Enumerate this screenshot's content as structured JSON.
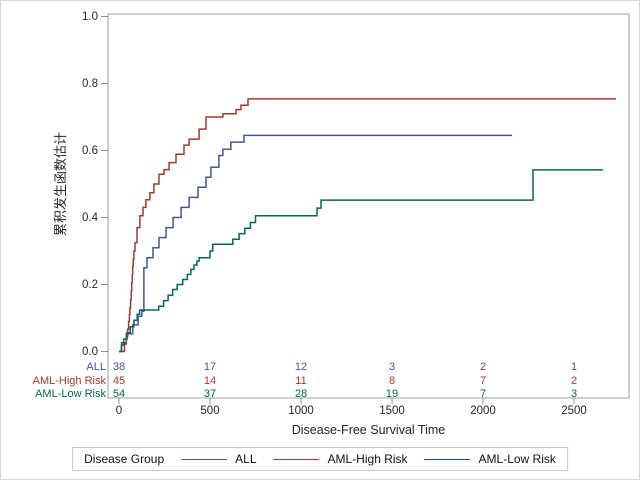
{
  "colors": {
    "all_group": "#445694",
    "aml_high_group": "#A23A2E",
    "aml_low_group": "#01665E",
    "frame": "#9ba0a3",
    "tick": "#8d9194",
    "text": "#262626",
    "legend_border": "#c9c9c9"
  },
  "legend": {
    "title": "Disease Group",
    "items": [
      {
        "label": "ALL",
        "color": "#445694"
      },
      {
        "label": "AML-High Risk",
        "color": "#A23A2E"
      },
      {
        "label": "AML-Low Risk",
        "color": "#01665E"
      }
    ]
  },
  "chart_data": {
    "type": "line",
    "subtype": "step-cumulative-incidence",
    "xlabel": "Disease-Free Survival Time",
    "ylabel": "累积发生函数估计",
    "xlim": [
      -60,
      2800
    ],
    "ylim": [
      0.0,
      1.0
    ],
    "x_ticks": [
      0,
      500,
      1000,
      1500,
      2000,
      2500
    ],
    "y_ticks": [
      0.0,
      0.2,
      0.4,
      0.6,
      0.8,
      1.0
    ],
    "grid": false,
    "legend_position": "bottom",
    "series": [
      {
        "name": "ALL",
        "color": "#445694",
        "steps": [
          [
            14,
            0.026
          ],
          [
            40,
            0.053
          ],
          [
            75,
            0.08
          ],
          [
            105,
            0.105
          ],
          [
            125,
            0.12
          ],
          [
            137,
            0.25
          ],
          [
            154,
            0.28
          ],
          [
            187,
            0.31
          ],
          [
            220,
            0.34
          ],
          [
            258,
            0.37
          ],
          [
            297,
            0.4
          ],
          [
            341,
            0.43
          ],
          [
            385,
            0.46
          ],
          [
            434,
            0.49
          ],
          [
            478,
            0.52
          ],
          [
            505,
            0.55
          ],
          [
            549,
            0.585
          ],
          [
            571,
            0.604
          ],
          [
            615,
            0.625
          ],
          [
            687,
            0.645
          ],
          [
            2160,
            0.645
          ]
        ]
      },
      {
        "name": "AML-High Risk",
        "color": "#A23A2E",
        "steps": [
          [
            30,
            0.022
          ],
          [
            40,
            0.045
          ],
          [
            48,
            0.067
          ],
          [
            53,
            0.09
          ],
          [
            57,
            0.11
          ],
          [
            60,
            0.13
          ],
          [
            64,
            0.155
          ],
          [
            67,
            0.18
          ],
          [
            70,
            0.205
          ],
          [
            73,
            0.23
          ],
          [
            75,
            0.255
          ],
          [
            78,
            0.275
          ],
          [
            82,
            0.3
          ],
          [
            88,
            0.325
          ],
          [
            99,
            0.37
          ],
          [
            115,
            0.405
          ],
          [
            132,
            0.43
          ],
          [
            148,
            0.453
          ],
          [
            170,
            0.474
          ],
          [
            192,
            0.5
          ],
          [
            220,
            0.529
          ],
          [
            247,
            0.543
          ],
          [
            275,
            0.564
          ],
          [
            313,
            0.589
          ],
          [
            357,
            0.616
          ],
          [
            385,
            0.634
          ],
          [
            440,
            0.664
          ],
          [
            478,
            0.7
          ],
          [
            571,
            0.71
          ],
          [
            643,
            0.722
          ],
          [
            670,
            0.735
          ],
          [
            709,
            0.754
          ],
          [
            2730,
            0.754
          ]
        ]
      },
      {
        "name": "AML-Low Risk",
        "color": "#01665E",
        "steps": [
          [
            14,
            0.019
          ],
          [
            26,
            0.037
          ],
          [
            44,
            0.056
          ],
          [
            62,
            0.074
          ],
          [
            82,
            0.093
          ],
          [
            100,
            0.111
          ],
          [
            113,
            0.124
          ],
          [
            218,
            0.135
          ],
          [
            245,
            0.152
          ],
          [
            270,
            0.168
          ],
          [
            295,
            0.185
          ],
          [
            320,
            0.2
          ],
          [
            350,
            0.215
          ],
          [
            375,
            0.23
          ],
          [
            395,
            0.245
          ],
          [
            412,
            0.258
          ],
          [
            428,
            0.27
          ],
          [
            440,
            0.28
          ],
          [
            500,
            0.3
          ],
          [
            515,
            0.32
          ],
          [
            625,
            0.335
          ],
          [
            660,
            0.352
          ],
          [
            692,
            0.368
          ],
          [
            722,
            0.385
          ],
          [
            750,
            0.405
          ],
          [
            1088,
            0.428
          ],
          [
            1110,
            0.452
          ],
          [
            2275,
            0.542
          ],
          [
            2660,
            0.542
          ]
        ]
      }
    ],
    "at_risk_table": {
      "x_positions": [
        0,
        500,
        1000,
        1500,
        2000,
        2500
      ],
      "rows": [
        {
          "label": "ALL",
          "color": "#445694",
          "counts": [
            38,
            17,
            12,
            3,
            2,
            1
          ]
        },
        {
          "label": "AML-High Risk",
          "color": "#A23A2E",
          "counts": [
            45,
            14,
            11,
            8,
            7,
            2
          ]
        },
        {
          "label": "AML-Low Risk",
          "color": "#01665E",
          "counts": [
            54,
            37,
            28,
            19,
            7,
            3
          ]
        }
      ]
    }
  }
}
